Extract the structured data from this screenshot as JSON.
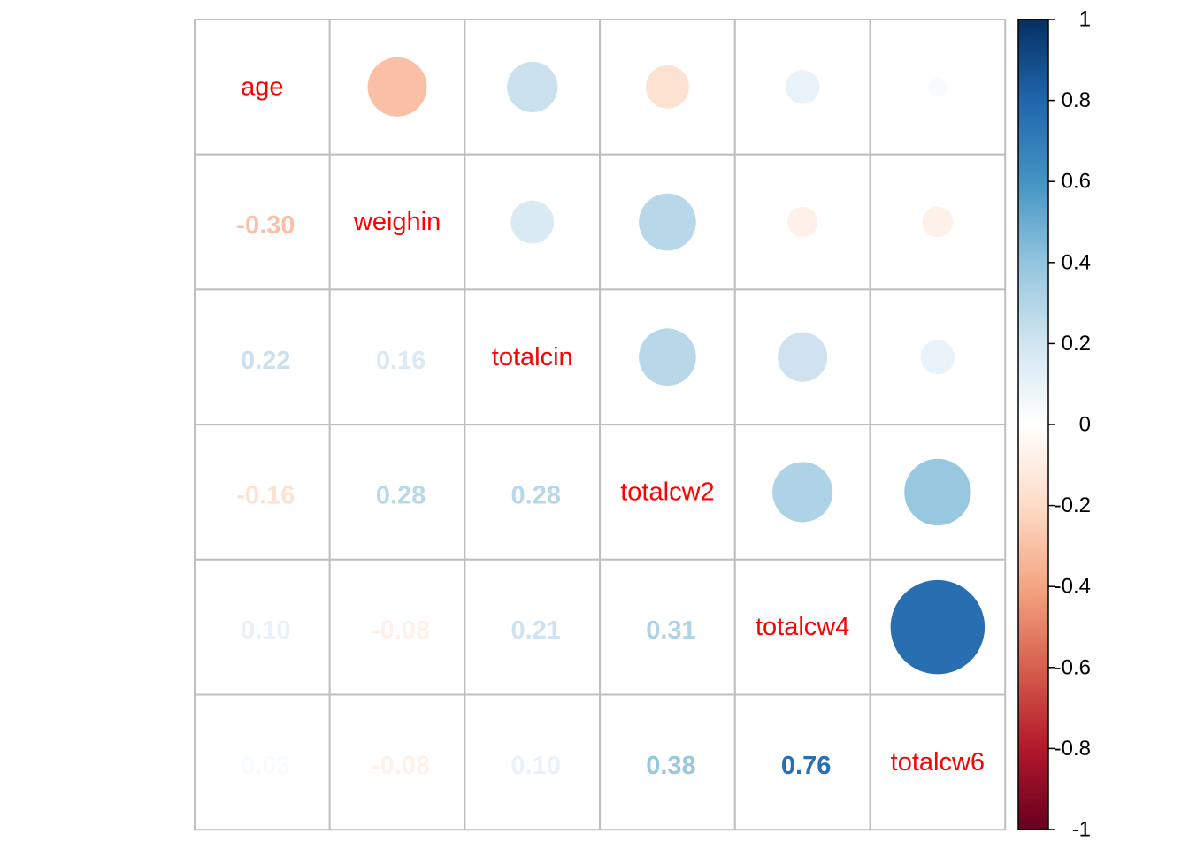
{
  "chart_data": {
    "type": "heatmap",
    "variables": [
      "age",
      "weighin",
      "totalcin",
      "totalcw2",
      "totalcw4",
      "totalcw6"
    ],
    "matrix": [
      [
        1.0,
        -0.3,
        0.22,
        -0.16,
        0.1,
        0.03
      ],
      [
        -0.3,
        1.0,
        0.16,
        0.28,
        -0.08,
        -0.08
      ],
      [
        0.22,
        0.16,
        1.0,
        0.28,
        0.21,
        0.1
      ],
      [
        -0.16,
        0.28,
        0.28,
        1.0,
        0.31,
        0.38
      ],
      [
        0.1,
        -0.08,
        0.21,
        0.31,
        1.0,
        0.76
      ],
      [
        0.03,
        -0.08,
        0.1,
        0.38,
        0.76,
        1.0
      ]
    ],
    "lower_text": [
      [
        null,
        null,
        null,
        null,
        null,
        null
      ],
      [
        "-0.30",
        null,
        null,
        null,
        null,
        null
      ],
      [
        "0.22",
        "0.16",
        null,
        null,
        null,
        null
      ],
      [
        "-0.16",
        "0.28",
        "0.28",
        null,
        null,
        null
      ],
      [
        "0.10",
        "-0.08",
        "0.21",
        "0.31",
        null,
        null
      ],
      [
        "0.03",
        "-0.08",
        "0.10",
        "0.38",
        "0.76",
        null
      ]
    ],
    "upper_method": "circle",
    "lower_method": "number",
    "diagonal": "variable names",
    "colorbar": {
      "range": [
        -1,
        1
      ],
      "ticks": [
        "1",
        "0.8",
        "0.6",
        "0.4",
        "0.2",
        "0",
        "-0.2",
        "-0.4",
        "-0.6",
        "-0.8",
        "-1"
      ],
      "colors": [
        "#67001F",
        "#B2182B",
        "#D6604D",
        "#F4A582",
        "#FDDBC7",
        "#FFFFFF",
        "#D1E5F0",
        "#92C5DE",
        "#4393C3",
        "#2166AC",
        "#053061"
      ]
    },
    "label_color": "#FF0000",
    "grid_color": "#BFBFBF"
  }
}
